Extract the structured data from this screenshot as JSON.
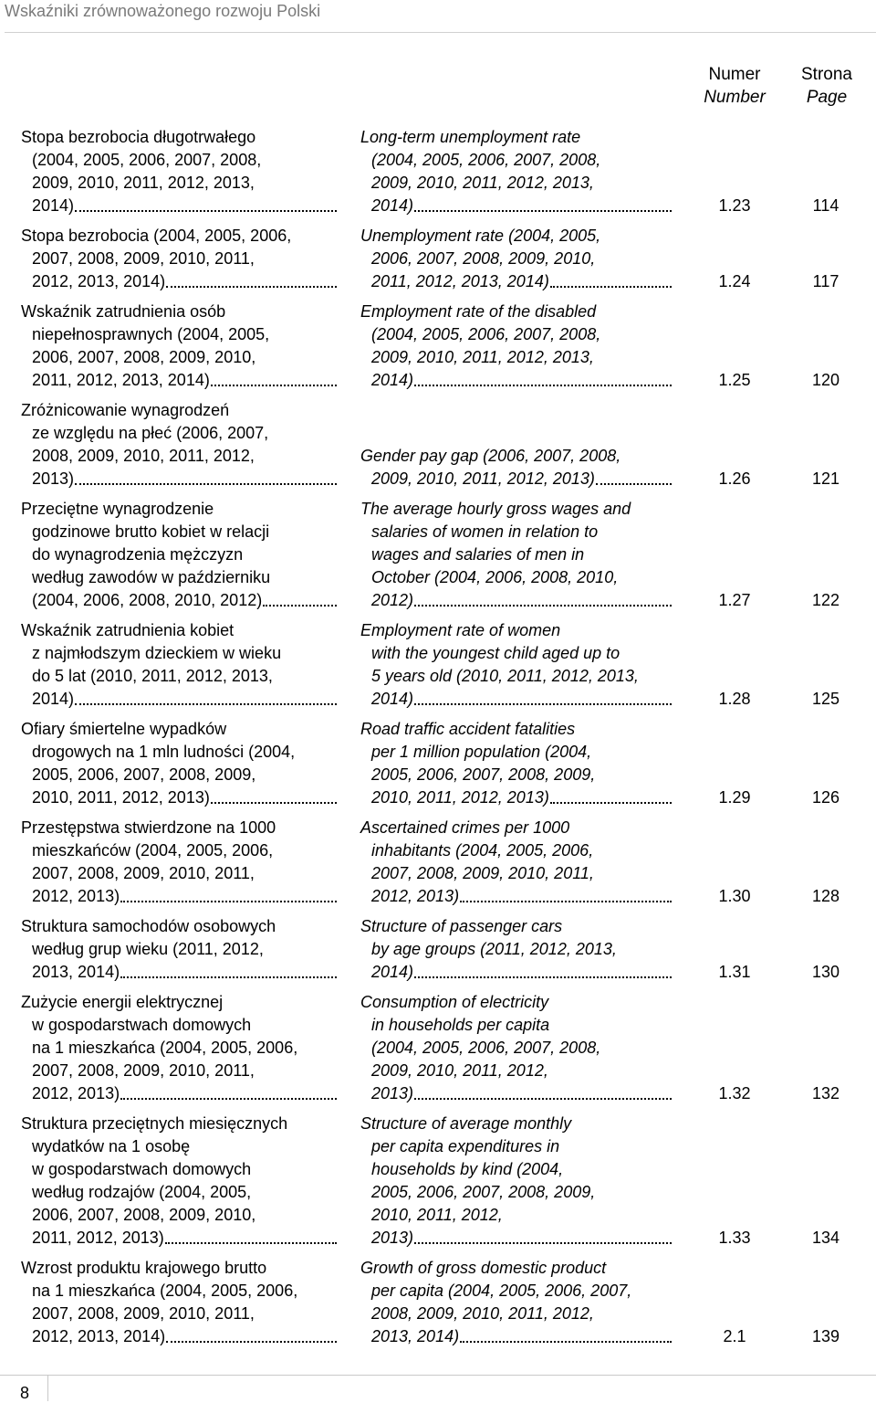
{
  "header": {
    "title": "Wskaźniki zrównoważonego rozwoju Polski"
  },
  "columns": {
    "number": [
      "Numer",
      "Number"
    ],
    "page": [
      "Strona",
      "Page"
    ]
  },
  "entries": [
    {
      "pl": [
        "Stopa bezrobocia długotrwałego",
        "(2004, 2005, 2006, 2007, 2008,",
        "2009, 2010, 2011, 2012, 2013,",
        "2014)"
      ],
      "en": [
        "Long-term unemployment rate",
        "(2004, 2005, 2006, 2007, 2008,",
        "2009, 2010, 2011, 2012, 2013,",
        "2014)"
      ],
      "number": "1.23",
      "page": 114
    },
    {
      "pl": [
        "Stopa bezrobocia (2004, 2005, 2006,",
        "2007, 2008, 2009, 2010, 2011,",
        "2012, 2013, 2014)"
      ],
      "en": [
        "Unemployment rate (2004, 2005,",
        "2006, 2007, 2008, 2009, 2010,",
        "2011, 2012, 2013, 2014)"
      ],
      "number": "1.24",
      "page": 117
    },
    {
      "pl": [
        "Wskaźnik zatrudnienia osób",
        "niepełnosprawnych (2004, 2005,",
        "2006, 2007, 2008, 2009, 2010,",
        "2011, 2012, 2013, 2014)"
      ],
      "en": [
        "Employment rate of the disabled",
        "(2004, 2005, 2006, 2007, 2008,",
        "2009, 2010, 2011, 2012, 2013,",
        "2014)"
      ],
      "number": "1.25",
      "page": 120
    },
    {
      "pl": [
        "Zróżnicowanie wynagrodzeń",
        "ze względu na płeć (2006, 2007,",
        "2008, 2009, 2010, 2011, 2012,",
        "2013)"
      ],
      "en": [
        "Gender pay gap (2006, 2007, 2008,",
        "2009, 2010, 2011, 2012, 2013)"
      ],
      "number": "1.26",
      "page": 121
    },
    {
      "pl": [
        "Przeciętne wynagrodzenie",
        "godzinowe brutto kobiet w relacji",
        "do wynagrodzenia mężczyzn",
        "według zawodów w październiku",
        "(2004, 2006, 2008, 2010, 2012)"
      ],
      "en": [
        "The average hourly gross wages and",
        "salaries of women in relation to",
        "wages and salaries of men in",
        "October (2004, 2006, 2008, 2010,",
        "2012)"
      ],
      "number": "1.27",
      "page": 122
    },
    {
      "pl": [
        "Wskaźnik zatrudnienia kobiet",
        "z najmłodszym dzieckiem w wieku",
        "do 5 lat (2010, 2011, 2012, 2013,",
        "2014)"
      ],
      "en": [
        "Employment rate of women",
        "with the youngest child aged up to",
        "5 years old (2010, 2011, 2012, 2013,",
        "2014)"
      ],
      "number": "1.28",
      "page": 125
    },
    {
      "pl": [
        "Ofiary śmiertelne wypadków",
        "drogowych na 1 mln ludności (2004,",
        "2005, 2006, 2007, 2008, 2009,",
        "2010, 2011, 2012, 2013)"
      ],
      "en": [
        "Road traffic accident fatalities",
        "per 1 million population (2004,",
        "2005, 2006, 2007, 2008, 2009,",
        "2010, 2011, 2012, 2013)"
      ],
      "number": "1.29",
      "page": 126
    },
    {
      "pl": [
        "Przestępstwa stwierdzone na 1000",
        "mieszkańców (2004, 2005, 2006,",
        "2007, 2008, 2009, 2010, 2011,",
        "2012, 2013)"
      ],
      "en": [
        "Ascertained crimes per 1000",
        "inhabitants (2004, 2005, 2006,",
        "2007, 2008, 2009, 2010, 2011,",
        "2012, 2013)"
      ],
      "number": "1.30",
      "page": 128
    },
    {
      "pl": [
        "Struktura samochodów osobowych",
        "według grup wieku (2011, 2012,",
        "2013, 2014)"
      ],
      "en": [
        "Structure of passenger cars",
        "by age groups (2011, 2012, 2013,",
        "2014)"
      ],
      "number": "1.31",
      "page": 130
    },
    {
      "pl": [
        "Zużycie energii elektrycznej",
        "w gospodarstwach domowych",
        "na 1 mieszkańca (2004, 2005, 2006,",
        "2007, 2008, 2009, 2010, 2011,",
        "2012, 2013)"
      ],
      "en": [
        "Consumption of electricity",
        "in households per capita",
        "(2004, 2005, 2006, 2007, 2008,",
        "2009, 2010, 2011, 2012,",
        "2013)"
      ],
      "number": "1.32",
      "page": 132
    },
    {
      "pl": [
        "Struktura przeciętnych miesięcznych",
        "wydatków na 1 osobę",
        "w gospodarstwach domowych",
        "według rodzajów (2004, 2005,",
        "2006, 2007, 2008, 2009, 2010,",
        "2011, 2012, 2013)"
      ],
      "en": [
        "Structure of average monthly",
        "per capita expenditures in",
        "households by kind (2004,",
        "2005, 2006, 2007, 2008, 2009,",
        "2010, 2011, 2012,",
        "2013)"
      ],
      "number": "1.33",
      "page": 134
    },
    {
      "pl": [
        "Wzrost produktu krajowego brutto",
        "na 1 mieszkańca (2004, 2005, 2006,",
        "2007, 2008, 2009, 2010, 2011,",
        "2012, 2013, 2014)"
      ],
      "en": [
        "Growth of gross domestic product",
        "per capita (2004, 2005, 2006, 2007,",
        "2008, 2009, 2010, 2011, 2012,",
        "2013, 2014)"
      ],
      "number": "2.1",
      "page": 139
    }
  ],
  "footer": {
    "page_number": 8
  }
}
